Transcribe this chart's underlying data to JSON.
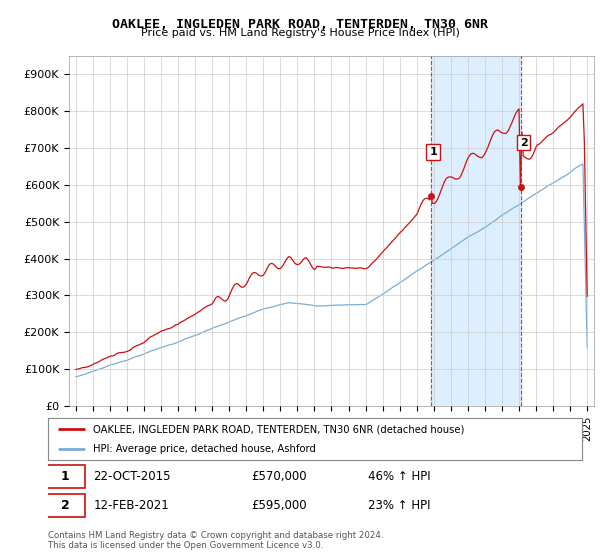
{
  "title": "OAKLEE, INGLEDEN PARK ROAD, TENTERDEN, TN30 6NR",
  "subtitle": "Price paid vs. HM Land Registry's House Price Index (HPI)",
  "ylim": [
    0,
    950000
  ],
  "yticks": [
    0,
    100000,
    200000,
    300000,
    400000,
    500000,
    600000,
    700000,
    800000,
    900000
  ],
  "ytick_labels": [
    "£0",
    "£100K",
    "£200K",
    "£300K",
    "£400K",
    "£500K",
    "£600K",
    "£700K",
    "£800K",
    "£900K"
  ],
  "hpi_color": "#7aadd4",
  "price_color": "#cc1111",
  "transaction1_date": 2015.81,
  "transaction1_price": 570000,
  "transaction1_label": "1",
  "transaction2_date": 2021.12,
  "transaction2_price": 595000,
  "transaction2_label": "2",
  "legend_line1": "OAKLEE, INGLEDEN PARK ROAD, TENTERDEN, TN30 6NR (detached house)",
  "legend_line2": "HPI: Average price, detached house, Ashford",
  "annot1_date": "22-OCT-2015",
  "annot1_price": "£570,000",
  "annot1_hpi": "46% ↑ HPI",
  "annot2_date": "12-FEB-2021",
  "annot2_price": "£595,000",
  "annot2_hpi": "23% ↑ HPI",
  "footer": "Contains HM Land Registry data © Crown copyright and database right 2024.\nThis data is licensed under the Open Government Licence v3.0.",
  "background_color": "#ffffff",
  "plot_bg_color": "#ffffff",
  "grid_color": "#cccccc",
  "span_color": "#ddeeff",
  "xstart": 1995,
  "xend": 2025
}
